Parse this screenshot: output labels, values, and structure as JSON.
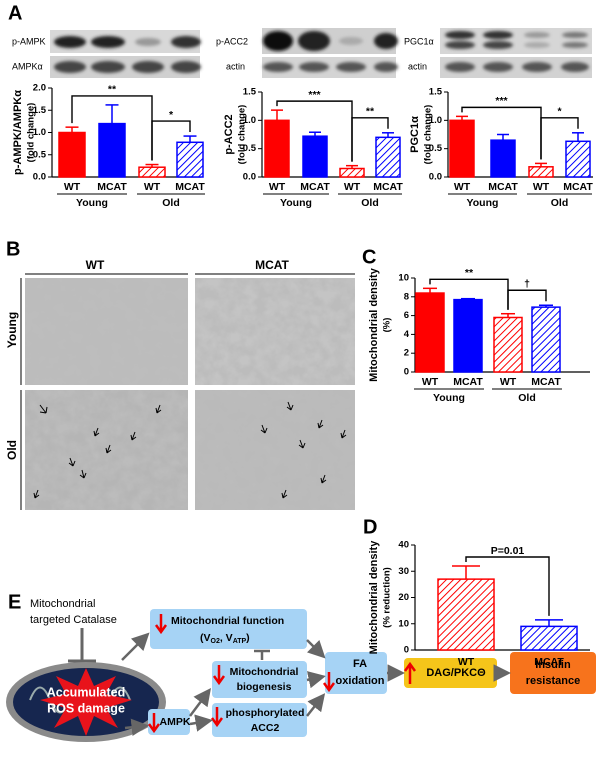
{
  "panel_labels": [
    "A",
    "B",
    "C",
    "D",
    "E"
  ],
  "blots": [
    {
      "top": "p-AMPK",
      "bottom": "AMPKα"
    },
    {
      "top": "p-ACC2",
      "bottom": "actin"
    },
    {
      "top": "PGC1α",
      "bottom": "actin"
    }
  ],
  "micrographs": {
    "columns": [
      "WT",
      "MCAT"
    ],
    "rows": [
      "Young",
      "Old"
    ]
  },
  "chart_data": [
    {
      "type": "bar",
      "ylabel": "p-AMPK/AMPKα",
      "ylabel_sub": "(fold change)",
      "categories": [
        "WT",
        "MCAT",
        "WT",
        "MCAT"
      ],
      "groups": [
        "Young",
        "Old"
      ],
      "values": [
        1.0,
        1.2,
        0.22,
        0.78
      ],
      "errors": [
        0.12,
        0.42,
        0.06,
        0.14
      ],
      "colors": [
        "#ff0000",
        "#0000ff",
        "#ff0000",
        "#0000ff"
      ],
      "hatch": [
        false,
        false,
        true,
        true
      ],
      "ylim": [
        0,
        2
      ],
      "yticks": [
        {
          "value": 0,
          "label": "0.0"
        },
        0.5,
        {
          "value": 1,
          "label": "1.0"
        },
        1.5,
        {
          "value": 2,
          "label": "2.0"
        }
      ],
      "annotations": [
        "**",
        "*"
      ]
    },
    {
      "type": "bar",
      "ylabel": "p-ACC2",
      "ylabel_sub": "(fold change)",
      "categories": [
        "WT",
        "MCAT",
        "WT",
        "MCAT"
      ],
      "groups": [
        "Young",
        "Old"
      ],
      "values": [
        1.0,
        0.72,
        0.15,
        0.7
      ],
      "errors": [
        0.18,
        0.07,
        0.05,
        0.08
      ],
      "colors": [
        "#ff0000",
        "#0000ff",
        "#ff0000",
        "#0000ff"
      ],
      "hatch": [
        false,
        false,
        true,
        true
      ],
      "ylim": [
        0,
        1.5
      ],
      "yticks": [
        {
          "value": 0,
          "label": "0.0"
        },
        0.5,
        {
          "value": 1,
          "label": "1.0"
        },
        1.5
      ],
      "annotations": [
        "***",
        "**"
      ]
    },
    {
      "type": "bar",
      "ylabel": "PGC1α",
      "ylabel_sub": "(fold change)",
      "categories": [
        "WT",
        "MCAT",
        "WT",
        "MCAT"
      ],
      "groups": [
        "Young",
        "Old"
      ],
      "values": [
        1.0,
        0.65,
        0.18,
        0.63
      ],
      "errors": [
        0.07,
        0.1,
        0.06,
        0.15
      ],
      "colors": [
        "#ff0000",
        "#0000ff",
        "#ff0000",
        "#0000ff"
      ],
      "hatch": [
        false,
        false,
        true,
        true
      ],
      "ylim": [
        0,
        1.5
      ],
      "yticks": [
        {
          "value": 0,
          "label": "0.0"
        },
        0.5,
        {
          "value": 1,
          "label": "1.0"
        },
        1.5
      ],
      "annotations": [
        "***",
        "*"
      ]
    },
    {
      "type": "bar",
      "ylabel": "Mitochondrial density",
      "ylabel_sub": "(%)",
      "categories": [
        "WT",
        "MCAT",
        "WT",
        "MCAT"
      ],
      "groups": [
        "Young",
        "Old"
      ],
      "values": [
        8.4,
        7.7,
        5.8,
        6.9
      ],
      "errors": [
        0.5,
        0.1,
        0.4,
        0.2
      ],
      "colors": [
        "#ff0000",
        "#0000ff",
        "#ff0000",
        "#0000ff"
      ],
      "hatch": [
        false,
        false,
        true,
        true
      ],
      "ylim": [
        0,
        10
      ],
      "yticks": [
        0,
        2,
        4,
        6,
        8,
        10
      ],
      "annotations": [
        "**",
        "†"
      ]
    },
    {
      "type": "bar",
      "ylabel": "Mitochondrial density",
      "ylabel_sub": "(% reduction)",
      "categories": [
        "WT",
        "MCAT"
      ],
      "values": [
        27,
        9
      ],
      "errors": [
        5,
        2.5
      ],
      "colors": [
        "#ff0000",
        "#0000ff"
      ],
      "hatch": [
        true,
        true
      ],
      "ylim": [
        0,
        40
      ],
      "yticks": [
        0,
        10,
        20,
        30,
        40
      ],
      "annotations": [
        "P=0.01"
      ]
    }
  ],
  "diagram": {
    "catalase": [
      "Mitochondrial",
      "targeted Catalase"
    ],
    "ros": [
      "Accumulated",
      "ROS damage"
    ],
    "function": {
      "line1": "Mitochondrial function",
      "line2": [
        "(V",
        "O2",
        ", V",
        "ATP",
        ")"
      ]
    },
    "biogenesis": [
      "Mitochondrial",
      "biogenesis"
    ],
    "ampk": "AMPK",
    "acc2": [
      "phosphorylated",
      "ACC2"
    ],
    "fa": [
      "FA",
      "oxidation"
    ],
    "dag": "DAG/PKCΘ",
    "insulin": [
      "Insulin",
      "resistance"
    ]
  }
}
